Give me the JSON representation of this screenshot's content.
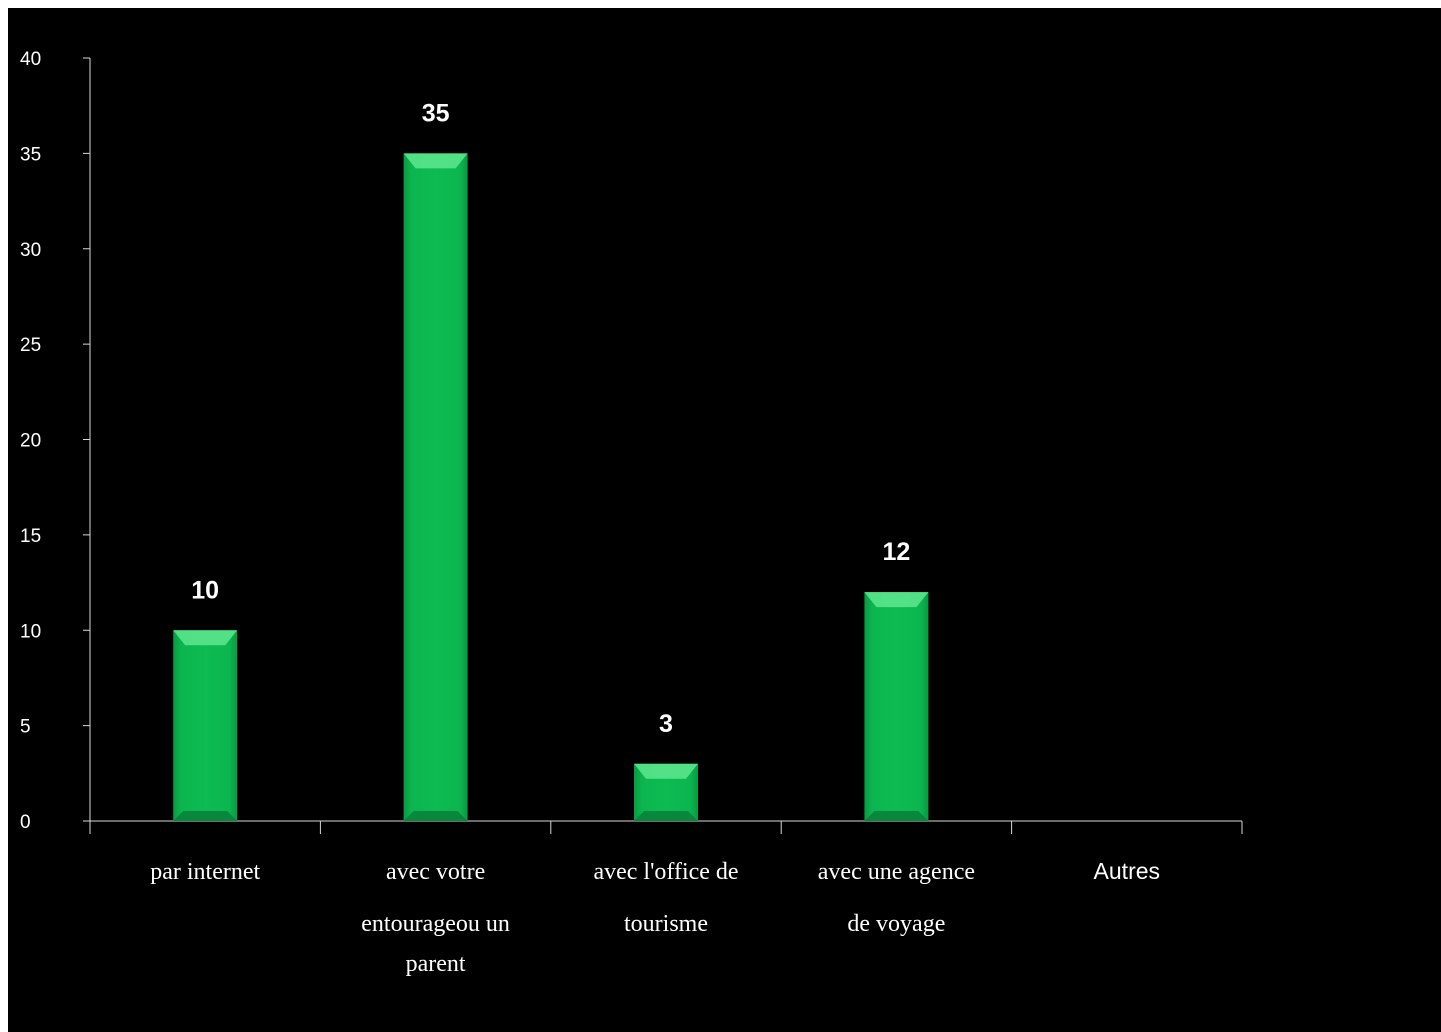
{
  "chart_data": {
    "type": "bar",
    "categories": [
      [
        "par internet"
      ],
      [
        "avec votre",
        "entourageou un",
        "parent"
      ],
      [
        "avec l'office de",
        "tourisme"
      ],
      [
        "avec une agence",
        "de voyage"
      ],
      [
        "Autres"
      ]
    ],
    "values": [
      10,
      35,
      3,
      12,
      null
    ],
    "data_labels": [
      "10",
      "35",
      "3",
      "12",
      ""
    ],
    "ylim": [
      0,
      40
    ],
    "yticks": [
      0,
      5,
      10,
      15,
      20,
      25,
      30,
      35,
      40
    ],
    "title": "",
    "xlabel": "",
    "ylabel": "",
    "grid": false,
    "legend": "none",
    "colors": {
      "background": "#000000",
      "bar": "#0dbb52",
      "bar_highlight": "#5fe891",
      "bar_shadow": "#07833a",
      "axis": "#d9d9d9",
      "text": "#ffffff"
    }
  }
}
